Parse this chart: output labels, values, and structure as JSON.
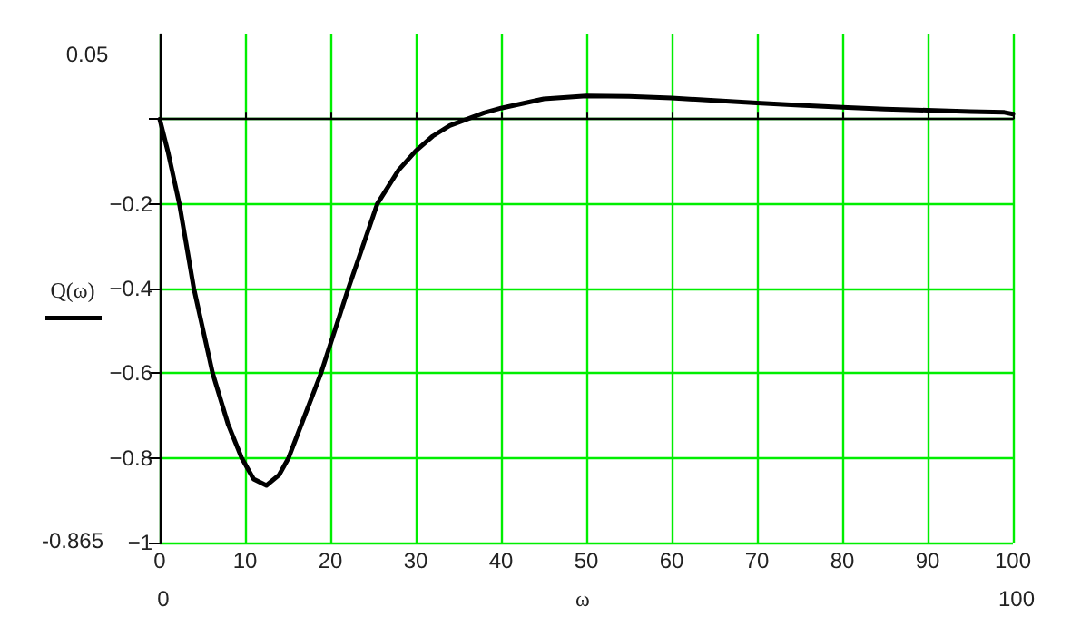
{
  "chart_data": {
    "type": "line",
    "xlabel": "ω",
    "ylabel": "Q(ω)",
    "x": [
      0,
      1,
      2.3,
      4,
      6.2,
      8,
      9.6,
      11,
      12.5,
      14,
      15.1,
      17,
      18.9,
      20.5,
      22.1,
      25.5,
      28,
      30,
      32,
      34,
      36,
      38,
      40,
      45,
      50,
      55,
      60,
      65,
      70,
      75,
      80,
      85,
      90,
      95,
      99,
      100
    ],
    "series": [
      {
        "color": "#000000",
        "values": [
          0,
          -0.08,
          -0.2,
          -0.4,
          -0.6,
          -0.72,
          -0.8,
          -0.85,
          -0.865,
          -0.84,
          -0.8,
          -0.7,
          -0.6,
          -0.5,
          -0.4,
          -0.2,
          -0.12,
          -0.075,
          -0.04,
          -0.015,
          0,
          0.015,
          0.026,
          0.048,
          0.055,
          0.054,
          0.05,
          0.044,
          0.038,
          0.033,
          0.028,
          0.024,
          0.021,
          0.018,
          0.016,
          0.012
        ]
      }
    ],
    "xlim": [
      0,
      100
    ],
    "xticks": [
      0,
      10,
      20,
      30,
      40,
      50,
      60,
      70,
      80,
      90,
      100
    ],
    "ylim": [
      -1,
      0.2
    ],
    "yticks": [
      -1,
      -0.8,
      -0.6,
      -0.4,
      -0.2,
      {
        "value": 0,
        "label": null
      }
    ],
    "grid": true,
    "marker": "none",
    "line_style": "solid",
    "annotations": [
      "0.05",
      "-0.865",
      "0",
      "100"
    ]
  }
}
